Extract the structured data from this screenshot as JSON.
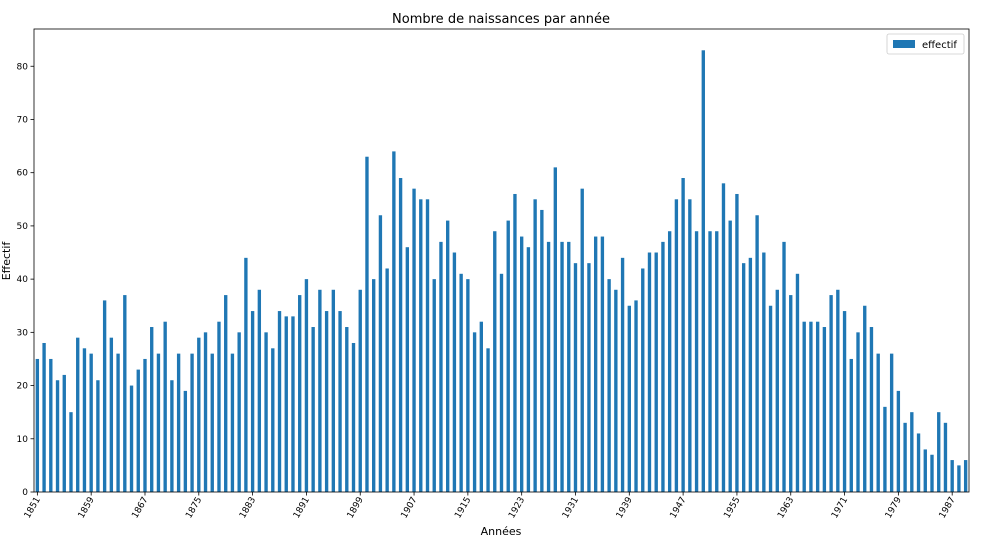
{
  "chart_data": {
    "type": "bar",
    "title": "Nombre de naissances par année",
    "xlabel": "Années",
    "ylabel": "Effectif",
    "ylim": [
      0,
      87
    ],
    "yticks": [
      0,
      10,
      20,
      30,
      40,
      50,
      60,
      70,
      80
    ],
    "xtick_labels": [
      "1851",
      "1859",
      "1867",
      "1875",
      "1883",
      "1891",
      "1899",
      "1907",
      "1915",
      "1923",
      "1931",
      "1939",
      "1947",
      "1955",
      "1963",
      "1971",
      "1979",
      "1987"
    ],
    "legend": {
      "location": "top-right",
      "entries": [
        "effectif"
      ]
    },
    "bar_color": "#1f77b4",
    "grid": false,
    "categories": [
      1851,
      1852,
      1853,
      1854,
      1855,
      1856,
      1857,
      1858,
      1859,
      1860,
      1861,
      1862,
      1863,
      1864,
      1865,
      1866,
      1867,
      1868,
      1869,
      1870,
      1871,
      1872,
      1873,
      1874,
      1875,
      1876,
      1877,
      1878,
      1879,
      1880,
      1881,
      1882,
      1883,
      1884,
      1885,
      1886,
      1887,
      1888,
      1889,
      1890,
      1891,
      1892,
      1893,
      1894,
      1895,
      1896,
      1897,
      1898,
      1899,
      1900,
      1901,
      1902,
      1903,
      1904,
      1905,
      1906,
      1907,
      1908,
      1909,
      1910,
      1911,
      1912,
      1913,
      1914,
      1915,
      1916,
      1917,
      1918,
      1919,
      1920,
      1921,
      1922,
      1923,
      1924,
      1925,
      1926,
      1927,
      1928,
      1929,
      1930,
      1931,
      1932,
      1933,
      1934,
      1935,
      1936,
      1937,
      1938,
      1939,
      1940,
      1941,
      1942,
      1943,
      1944,
      1945,
      1946,
      1947,
      1948,
      1949,
      1950,
      1951,
      1952,
      1953,
      1954,
      1955,
      1956,
      1957,
      1958,
      1959,
      1960,
      1961,
      1962,
      1963,
      1964,
      1965,
      1966,
      1967,
      1968,
      1969,
      1970,
      1971,
      1972,
      1973,
      1974,
      1975,
      1976,
      1977,
      1978,
      1979,
      1980,
      1981,
      1982,
      1983,
      1984,
      1985,
      1986,
      1987,
      1988,
      1989
    ],
    "series": [
      {
        "name": "effectif",
        "values": [
          25,
          28,
          25,
          21,
          22,
          15,
          29,
          27,
          26,
          21,
          36,
          29,
          26,
          37,
          20,
          23,
          25,
          31,
          26,
          32,
          21,
          26,
          19,
          26,
          29,
          30,
          26,
          32,
          37,
          26,
          30,
          44,
          34,
          38,
          30,
          27,
          34,
          33,
          33,
          37,
          40,
          31,
          38,
          34,
          38,
          34,
          31,
          28,
          38,
          63,
          40,
          52,
          42,
          64,
          59,
          46,
          57,
          55,
          55,
          40,
          47,
          51,
          45,
          41,
          40,
          30,
          32,
          27,
          49,
          41,
          51,
          56,
          48,
          46,
          55,
          53,
          47,
          61,
          47,
          47,
          43,
          57,
          43,
          48,
          48,
          40,
          38,
          44,
          35,
          36,
          42,
          45,
          45,
          47,
          49,
          55,
          59,
          55,
          49,
          83,
          49,
          49,
          58,
          51,
          56,
          43,
          44,
          52,
          45,
          35,
          38,
          47,
          37,
          41,
          32,
          32,
          32,
          31,
          37,
          38,
          34,
          25,
          30,
          35,
          31,
          26,
          16,
          26,
          19,
          13,
          15,
          11,
          8,
          7,
          15,
          13,
          6,
          5,
          6
        ]
      }
    ]
  }
}
